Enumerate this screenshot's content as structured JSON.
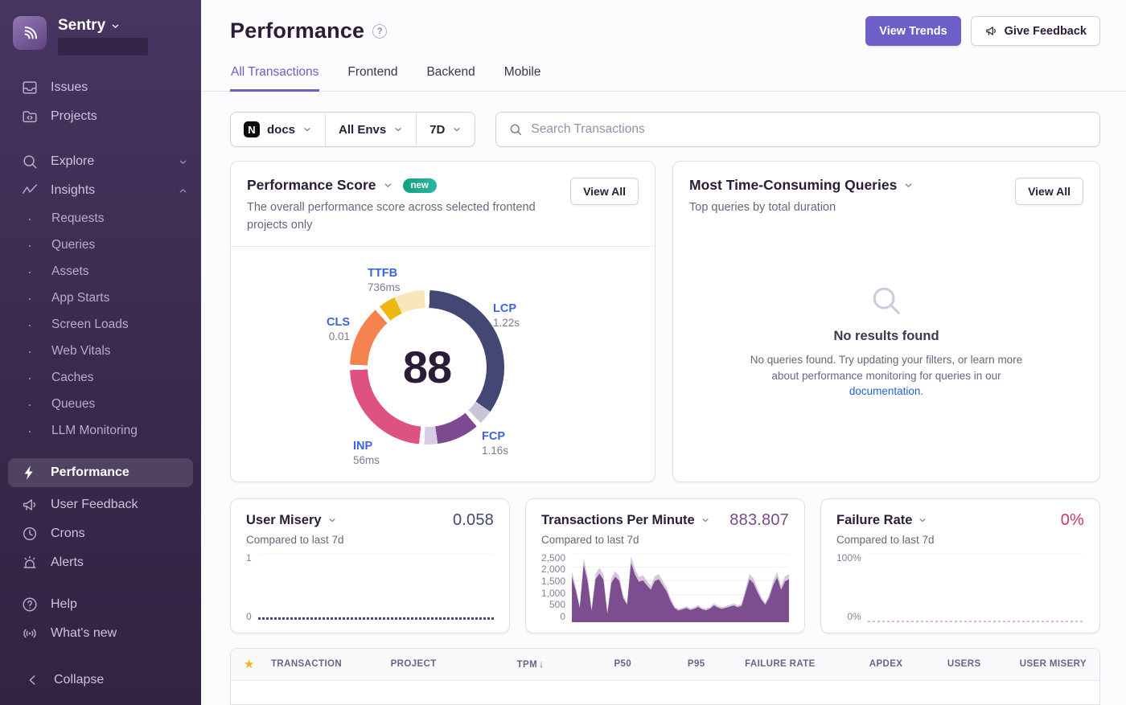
{
  "sidebar": {
    "brand": "Sentry",
    "primary": [
      {
        "label": "Issues",
        "icon": "issues"
      },
      {
        "label": "Projects",
        "icon": "projects"
      }
    ],
    "groups": [
      {
        "label": "Explore",
        "icon": "search",
        "chevron": "down"
      },
      {
        "label": "Insights",
        "icon": "insights",
        "chevron": "up"
      }
    ],
    "insights_children": [
      "Requests",
      "Queries",
      "Assets",
      "App Starts",
      "Screen Loads",
      "Web Vitals",
      "Caches",
      "Queues",
      "LLM Monitoring"
    ],
    "secondary": [
      {
        "label": "Performance",
        "icon": "performance",
        "active": true
      },
      {
        "label": "User Feedback",
        "icon": "feedback"
      },
      {
        "label": "Crons",
        "icon": "crons"
      },
      {
        "label": "Alerts",
        "icon": "alerts"
      }
    ],
    "tertiary": [
      {
        "label": "Help",
        "icon": "help"
      },
      {
        "label": "What's new",
        "icon": "whatsnew"
      }
    ],
    "collapse_label": "Collapse"
  },
  "header": {
    "title": "Performance",
    "help": "?",
    "view_trends_label": "View Trends",
    "give_feedback_label": "Give Feedback",
    "tabs": [
      {
        "label": "All Transactions",
        "active": true
      },
      {
        "label": "Frontend",
        "active": false
      },
      {
        "label": "Backend",
        "active": false
      },
      {
        "label": "Mobile",
        "active": false
      }
    ]
  },
  "filters": {
    "project": "docs",
    "project_icon": "N",
    "env": "All Envs",
    "range": "7D",
    "search_placeholder": "Search Transactions"
  },
  "cards": {
    "performance_score": {
      "title": "Performance Score",
      "badge": "new",
      "view_all": "View All",
      "description": "The overall performance score across selected frontend projects only"
    },
    "queries": {
      "title": "Most Time-Consuming Queries",
      "view_all": "View All",
      "description": "Top queries by total duration",
      "empty_title": "No results found",
      "empty_body_1": "No queries found. Try updating your filters, or learn more about performance monitoring for queries in our ",
      "empty_link": "documentation",
      "empty_body_2": "."
    },
    "user_misery": {
      "title": "User Misery",
      "value": "0.058",
      "subtitle": "Compared to last 7d"
    },
    "tpm": {
      "title": "Transactions Per Minute",
      "value": "883.807",
      "subtitle": "Compared to last 7d"
    },
    "failure_rate": {
      "title": "Failure Rate",
      "value": "0%",
      "subtitle": "Compared to last 7d"
    }
  },
  "table": {
    "columns": [
      {
        "icon": "star"
      },
      {
        "label": "TRANSACTION",
        "align": "left"
      },
      {
        "label": "PROJECT",
        "align": "left"
      },
      {
        "label": "TPM",
        "align": "right",
        "sorted": "desc"
      },
      {
        "label": "P50",
        "align": "right"
      },
      {
        "label": "P95",
        "align": "right"
      },
      {
        "label": "FAILURE RATE",
        "align": "right"
      },
      {
        "label": "APDEX",
        "align": "right"
      },
      {
        "label": "USERS",
        "align": "right"
      },
      {
        "label": "USER MISERY",
        "align": "right"
      }
    ]
  },
  "chart_data": [
    {
      "type": "donut",
      "title": "Performance Score",
      "score": "88",
      "metrics": {
        "ttfb": {
          "label": "TTFB",
          "value": "736ms"
        },
        "lcp": {
          "label": "LCP",
          "value": "1.22s"
        },
        "fcp": {
          "label": "FCP",
          "value": "1.16s"
        },
        "inp": {
          "label": "INP",
          "value": "56ms"
        },
        "cls": {
          "label": "CLS",
          "value": "0.01"
        }
      },
      "segments": [
        {
          "name": "LCP",
          "color": "#444674",
          "from": 2,
          "to": 125
        },
        {
          "name": "LCP-rest",
          "color": "#c9c5d6",
          "from": 125,
          "to": 136
        },
        {
          "name": "FCP",
          "color": "#7d4a91",
          "from": 140,
          "to": 172
        },
        {
          "name": "FCP-rest",
          "color": "#d9cbe3",
          "from": 172,
          "to": 182
        },
        {
          "name": "INP",
          "color": "#dd5282",
          "from": 186,
          "to": 268
        },
        {
          "name": "CLS",
          "color": "#f4834f",
          "from": 272,
          "to": 318
        },
        {
          "name": "TTFB",
          "color": "#efb810",
          "from": 322,
          "to": 335
        },
        {
          "name": "TTFB-rest",
          "color": "#f8e7bb",
          "from": 335,
          "to": 358
        }
      ]
    },
    {
      "type": "line",
      "title": "User Misery",
      "current_value": 0.058,
      "ylim": [
        0,
        1
      ],
      "yticks": [
        "1",
        "0"
      ],
      "values": [
        0.058,
        0.058
      ],
      "color": "#444674",
      "dash": "3 2",
      "width": 3
    },
    {
      "type": "area",
      "title": "Transactions Per Minute",
      "current_value": 883.807,
      "ylim": [
        0,
        2500
      ],
      "yticks": [
        "2,500",
        "2,000",
        "1,500",
        "1,000",
        "500",
        "0"
      ],
      "color": "#7c4d8f",
      "values": [
        1650,
        1150,
        520,
        2080,
        1480,
        420,
        1560,
        1760,
        1540,
        320,
        1420,
        1650,
        1500,
        880,
        640,
        2150,
        1720,
        1460,
        1520,
        1340,
        1180,
        1490,
        1560,
        1340,
        1120,
        780,
        520,
        430,
        470,
        520,
        450,
        490,
        560,
        470,
        440,
        500,
        610,
        540,
        490,
        530,
        570,
        610,
        550,
        600,
        1080,
        1560,
        1420,
        1100,
        820,
        640,
        900,
        1340,
        1620,
        1180,
        1480,
        1560
      ]
    },
    {
      "type": "line",
      "title": "Failure Rate",
      "current_value": 0,
      "ylim": [
        0,
        100
      ],
      "yticks": [
        "100%",
        "0%"
      ],
      "values": [
        0,
        0
      ],
      "color": "#e79ab2",
      "dash": "3 3",
      "width": 1.5
    }
  ]
}
